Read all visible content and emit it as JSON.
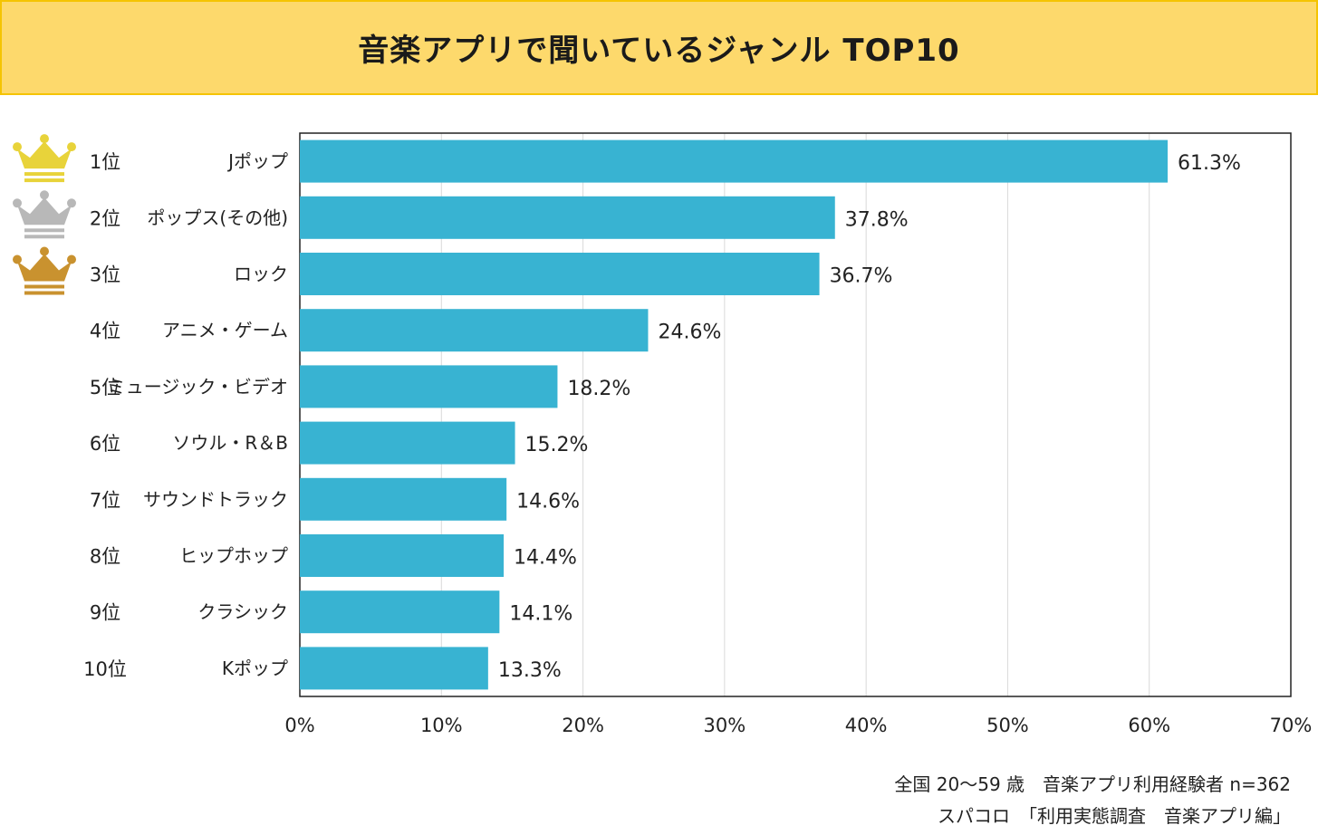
{
  "chart_data": {
    "type": "bar",
    "orientation": "horizontal",
    "title": "音楽アプリで聞いているジャンル TOP10",
    "ranks": [
      "1位",
      "2位",
      "3位",
      "4位",
      "5位",
      "6位",
      "7位",
      "8位",
      "9位",
      "10位"
    ],
    "categories": [
      "Jポップ",
      "ポップス(その他)",
      "ロック",
      "アニメ・ゲーム",
      "ミュージック・ビデオ",
      "ソウル・R＆B",
      "サウンドトラック",
      "ヒップホップ",
      "クラシック",
      "Kポップ"
    ],
    "values": [
      61.3,
      37.8,
      36.7,
      24.6,
      18.2,
      15.2,
      14.6,
      14.4,
      14.1,
      13.3
    ],
    "value_labels": [
      "61.3%",
      "37.8%",
      "36.7%",
      "24.6%",
      "18.2%",
      "15.2%",
      "14.6%",
      "14.4%",
      "14.1%",
      "13.3%"
    ],
    "xlim": [
      0,
      70
    ],
    "xticks": [
      0,
      10,
      20,
      30,
      40,
      50,
      60,
      70
    ],
    "xtick_labels": [
      "0%",
      "10%",
      "20%",
      "30%",
      "40%",
      "50%",
      "60%",
      "70%"
    ],
    "grid": true,
    "bar_color": "#38b3d2",
    "crown_colors": [
      "#e8d33a",
      "#b8b8b8",
      "#c9922f"
    ]
  },
  "footer": {
    "line1": "全国 20～59 歳　音楽アプリ利用経験者 n=362",
    "line2": "スパコロ　「利用実態調査　音楽アプリ編」"
  }
}
